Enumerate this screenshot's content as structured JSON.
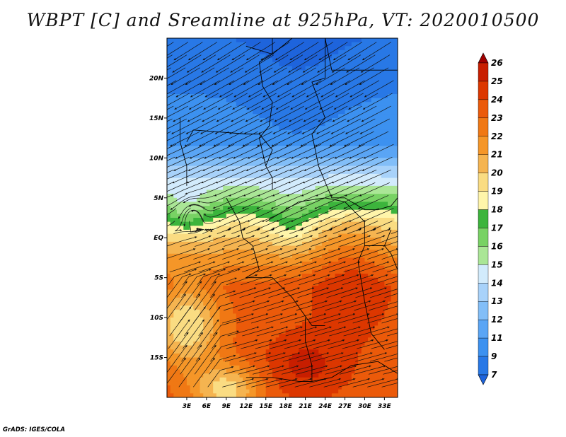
{
  "title": "WBPT [C] and Sreamline at 925hPa, VT: 2020010500",
  "credit": "GrADS: IGES/COLA",
  "chart_data": {
    "type": "heatmap",
    "title": "WBPT [C] and Sreamline at 925hPa, VT: 2020010500",
    "variable": "Wet-bulb potential temperature",
    "units": "C",
    "level": "925hPa",
    "valid_time": "2020010500",
    "lon_range": [
      0,
      35
    ],
    "lat_range": [
      -20,
      25
    ],
    "lon_ticks": [
      {
        "value": 3,
        "label": "3E"
      },
      {
        "value": 6,
        "label": "6E"
      },
      {
        "value": 9,
        "label": "9E"
      },
      {
        "value": 12,
        "label": "12E"
      },
      {
        "value": 15,
        "label": "15E"
      },
      {
        "value": 18,
        "label": "18E"
      },
      {
        "value": 21,
        "label": "21E"
      },
      {
        "value": 24,
        "label": "24E"
      },
      {
        "value": 27,
        "label": "27E"
      },
      {
        "value": 30,
        "label": "30E"
      },
      {
        "value": 33,
        "label": "33E"
      }
    ],
    "lat_ticks": [
      {
        "value": 20,
        "label": "20N"
      },
      {
        "value": 15,
        "label": "15N"
      },
      {
        "value": 10,
        "label": "10N"
      },
      {
        "value": 5,
        "label": "5N"
      },
      {
        "value": 0,
        "label": "EQ"
      },
      {
        "value": -5,
        "label": "5S"
      },
      {
        "value": -10,
        "label": "10S"
      },
      {
        "value": -15,
        "label": "15S"
      }
    ],
    "colorbar": {
      "levels": [
        7,
        9,
        11,
        12,
        13,
        14,
        15,
        16,
        17,
        18,
        19,
        20,
        21,
        22,
        23,
        24,
        25,
        26
      ],
      "colors": [
        "#1e64dc",
        "#2878e6",
        "#3c91f0",
        "#5aa5f5",
        "#82bef8",
        "#a8d2fa",
        "#d2ebfc",
        "#aae696",
        "#78d264",
        "#3cb43c",
        "#fff5aa",
        "#fadc82",
        "#f5b450",
        "#f59628",
        "#f07814",
        "#eb5a0a",
        "#dc3700",
        "#c81e00",
        "#a00000"
      ],
      "extend": "both"
    },
    "streamlines": true,
    "grid": false
  }
}
